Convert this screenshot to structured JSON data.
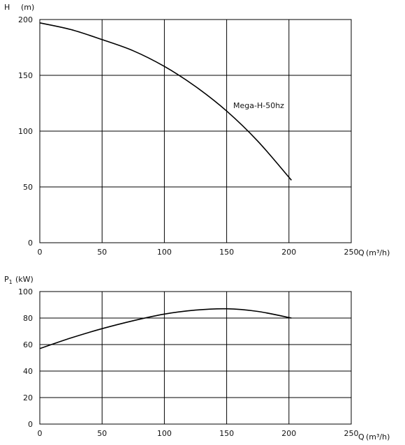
{
  "chart_data": [
    {
      "type": "line",
      "ylabel": "H",
      "yunit": "(m)",
      "xlabel": "Q",
      "xunit": "(m³/h)",
      "xlim": [
        0,
        250
      ],
      "ylim": [
        0,
        200
      ],
      "xticks": [
        "0",
        "50",
        "100",
        "150",
        "200",
        "250"
      ],
      "yticks": [
        "0",
        "50",
        "100",
        "150",
        "200"
      ],
      "grid": true,
      "series": [
        {
          "name": "Mega-H-50hz",
          "x": [
            0,
            25,
            50,
            75,
            100,
            125,
            150,
            175,
            202
          ],
          "y": [
            197,
            191,
            182,
            172,
            158,
            140,
            118,
            91,
            56
          ]
        }
      ]
    },
    {
      "type": "line",
      "ylabel": "P",
      "ylabel_sub": "1",
      "yunit": "(kW)",
      "xlabel": "Q",
      "xunit": "(m³/h)",
      "xlim": [
        0,
        250
      ],
      "ylim": [
        0,
        100
      ],
      "xticks": [
        "0",
        "50",
        "100",
        "150",
        "200",
        "250"
      ],
      "yticks": [
        "0",
        "20",
        "40",
        "60",
        "80",
        "100"
      ],
      "grid": true,
      "series": [
        {
          "x": [
            0,
            25,
            50,
            75,
            100,
            125,
            150,
            175,
            202
          ],
          "y": [
            57,
            65,
            72,
            78,
            83,
            86,
            87,
            85,
            80
          ]
        }
      ]
    }
  ]
}
